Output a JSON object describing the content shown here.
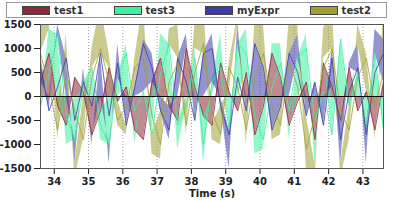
{
  "chart_data": {
    "type": "area",
    "x_label": "Time (s)",
    "x": [
      33.6,
      33.85,
      34.1,
      34.35,
      34.6,
      34.85,
      35.1,
      35.35,
      35.6,
      35.85,
      36.1,
      36.35,
      36.6,
      36.85,
      37.1,
      37.35,
      37.6,
      37.85,
      38.1,
      38.35,
      38.6,
      38.85,
      39.1,
      39.35,
      39.6,
      39.85,
      40.1,
      40.35,
      40.6,
      40.85,
      41.1,
      41.35,
      41.6,
      41.85,
      42.1,
      42.35,
      42.6,
      42.85,
      43.1,
      43.35,
      43.6
    ],
    "series": [
      {
        "name": "test1",
        "color": "#8b2a3a",
        "values": [
          300,
          900,
          -200,
          -600,
          400,
          100,
          -800,
          -300,
          600,
          -100,
          200,
          -700,
          -900,
          300,
          800,
          -200,
          -500,
          1000,
          200,
          -400,
          -600,
          700,
          100,
          -300,
          500,
          -800,
          -200,
          900,
          400,
          -600,
          -100,
          300,
          -900,
          700,
          200,
          -500,
          600,
          -300,
          100,
          -700,
          300
        ]
      },
      {
        "name": "test3",
        "color": "#3cf0a0",
        "values": [
          -200,
          500,
          1300,
          -400,
          -900,
          200,
          600,
          -600,
          -1000,
          400,
          900,
          -300,
          100,
          -800,
          500,
          1100,
          -600,
          -200,
          800,
          -1000,
          300,
          600,
          -700,
          1100,
          900,
          -400,
          -900,
          200,
          700,
          -300,
          800,
          1000,
          -500,
          100,
          -800,
          1200,
          -200,
          500,
          -600,
          900,
          -700
        ]
      },
      {
        "name": "myExpr",
        "color": "#3c3caa",
        "values": [
          600,
          -300,
          200,
          800,
          -500,
          300,
          -200,
          900,
          -400,
          700,
          -600,
          200,
          1100,
          600,
          -300,
          -700,
          800,
          300,
          -500,
          900,
          1000,
          -200,
          -800,
          400,
          -300,
          1100,
          600,
          -700,
          -200,
          900,
          500,
          -400,
          300,
          -600,
          800,
          -900,
          100,
          600,
          -800,
          500,
          900
        ]
      },
      {
        "name": "test2",
        "color": "#a0a034",
        "values": [
          900,
          200,
          -700,
          500,
          -300,
          -900,
          400,
          1000,
          300,
          -500,
          -200,
          600,
          800,
          -400,
          -1000,
          300,
          700,
          -600,
          500,
          1100,
          -300,
          -800,
          600,
          200,
          -700,
          400,
          900,
          -200,
          -600,
          700,
          200,
          -1100,
          -400,
          600,
          1000,
          -300,
          -700,
          400,
          800,
          -200,
          500
        ]
      }
    ],
    "xlim": [
      33.6,
      43.6
    ],
    "xticks": [
      34,
      35,
      36,
      37,
      38,
      39,
      40,
      41,
      42,
      43
    ],
    "ylim": [
      -1500,
      1500
    ],
    "yticks": [
      -1500,
      -1000,
      -500,
      0,
      500,
      1000,
      1500
    ],
    "grid": true,
    "legend": "top"
  }
}
